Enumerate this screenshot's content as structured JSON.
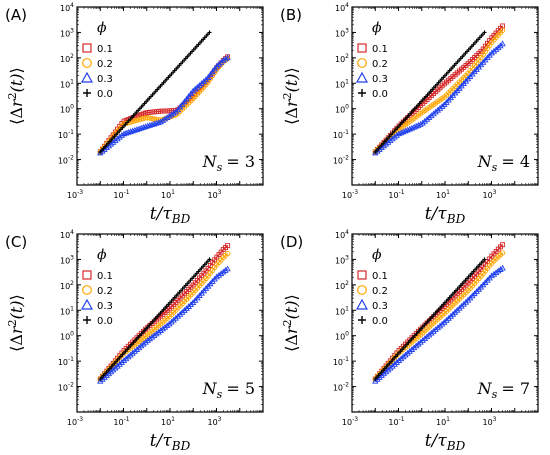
{
  "panel_ids": [
    "A",
    "B",
    "C",
    "D"
  ],
  "chart_data": [
    {
      "type": "scatter",
      "panel_label": "(A)",
      "annotation": {
        "text": "N",
        "subscript": "s",
        "value": "= 3"
      },
      "xlabel": {
        "main": "t/τ",
        "sub": "BD"
      },
      "ylabel": {
        "open": "⟨Δ",
        "var": "r",
        "sup": "2",
        "args": "(t)",
        "close": "⟩"
      },
      "xscale": "log",
      "yscale": "log",
      "xlim": [
        0.001,
        100000
      ],
      "ylim": [
        0.001,
        10000
      ],
      "x_ticks": [
        {
          "base": "10",
          "exp": "-3",
          "value": 0.001
        },
        {
          "base": "10",
          "exp": "-1",
          "value": 0.1
        },
        {
          "base": "10",
          "exp": "1",
          "value": 10
        },
        {
          "base": "10",
          "exp": "3",
          "value": 1000
        }
      ],
      "y_ticks": [
        {
          "base": "10",
          "exp": "-2",
          "value": 0.01
        },
        {
          "base": "10",
          "exp": "-1",
          "value": 0.1
        },
        {
          "base": "10",
          "exp": "0",
          "value": 1
        },
        {
          "base": "10",
          "exp": "1",
          "value": 10
        },
        {
          "base": "10",
          "exp": "2",
          "value": 100
        },
        {
          "base": "10",
          "exp": "3",
          "value": 1000
        },
        {
          "base": "10",
          "exp": "4",
          "value": 10000
        }
      ],
      "legend": {
        "title": "ϕ",
        "position": "upper-left"
      },
      "series": [
        {
          "name": "0.1",
          "marker": "square",
          "color": "#d62728",
          "points": [
            [
              0.01,
              0.02
            ],
            [
              0.1,
              0.32
            ],
            [
              1,
              0.7
            ],
            [
              4,
              0.8
            ],
            [
              20,
              0.85
            ],
            [
              100,
              3
            ],
            [
              400,
              12
            ],
            [
              1000,
              40
            ],
            [
              2000,
              80
            ],
            [
              3000,
              110
            ]
          ]
        },
        {
          "name": "0.2",
          "marker": "circle",
          "color": "#ffa500",
          "points": [
            [
              0.01,
              0.02
            ],
            [
              0.1,
              0.25
            ],
            [
              1,
              0.45
            ],
            [
              4,
              0.35
            ],
            [
              20,
              0.6
            ],
            [
              100,
              2.5
            ],
            [
              400,
              10
            ],
            [
              1000,
              35
            ],
            [
              2000,
              70
            ],
            [
              3000,
              95
            ]
          ]
        },
        {
          "name": "0.3",
          "marker": "triangle",
          "color": "#1f3ff0",
          "points": [
            [
              0.01,
              0.018
            ],
            [
              0.1,
              0.1
            ],
            [
              1,
              0.2
            ],
            [
              4,
              0.3
            ],
            [
              20,
              0.8
            ],
            [
              100,
              5
            ],
            [
              400,
              15
            ],
            [
              1000,
              45
            ],
            [
              2000,
              80
            ],
            [
              3000,
              100
            ]
          ]
        },
        {
          "name": "0.0",
          "marker": "plus",
          "color": "#000000",
          "points": [
            [
              0.01,
              0.02
            ],
            [
              0.1,
              0.2
            ],
            [
              1,
              2
            ],
            [
              10,
              20
            ],
            [
              100,
              200
            ],
            [
              500,
              1000
            ]
          ]
        }
      ]
    },
    {
      "type": "scatter",
      "panel_label": "(B)",
      "annotation": {
        "text": "N",
        "subscript": "s",
        "value": "= 4"
      },
      "xlabel": {
        "main": "t/τ",
        "sub": "BD"
      },
      "ylabel": {
        "open": "⟨Δ",
        "var": "r",
        "sup": "2",
        "args": "(t)",
        "close": "⟩"
      },
      "xscale": "log",
      "yscale": "log",
      "xlim": [
        0.001,
        100000
      ],
      "ylim": [
        0.001,
        10000
      ],
      "x_ticks": [
        {
          "base": "10",
          "exp": "-3",
          "value": 0.001
        },
        {
          "base": "10",
          "exp": "-1",
          "value": 0.1
        },
        {
          "base": "10",
          "exp": "1",
          "value": 10
        },
        {
          "base": "10",
          "exp": "3",
          "value": 1000
        }
      ],
      "y_ticks": [
        {
          "base": "10",
          "exp": "-2",
          "value": 0.01
        },
        {
          "base": "10",
          "exp": "-1",
          "value": 0.1
        },
        {
          "base": "10",
          "exp": "0",
          "value": 1
        },
        {
          "base": "10",
          "exp": "1",
          "value": 10
        },
        {
          "base": "10",
          "exp": "2",
          "value": 100
        },
        {
          "base": "10",
          "exp": "3",
          "value": 1000
        },
        {
          "base": "10",
          "exp": "4",
          "value": 10000
        }
      ],
      "legend": {
        "title": "ϕ",
        "position": "upper-left"
      },
      "series": [
        {
          "name": "0.1",
          "marker": "square",
          "color": "#d62728",
          "points": [
            [
              0.01,
              0.02
            ],
            [
              0.1,
              0.2
            ],
            [
              1,
              1.5
            ],
            [
              10,
              10
            ],
            [
              100,
              60
            ],
            [
              400,
              200
            ],
            [
              1000,
              600
            ],
            [
              2000,
              1200
            ],
            [
              3000,
              1800
            ]
          ]
        },
        {
          "name": "0.2",
          "marker": "circle",
          "color": "#ffa500",
          "points": [
            [
              0.01,
              0.02
            ],
            [
              0.1,
              0.15
            ],
            [
              1,
              0.7
            ],
            [
              10,
              3
            ],
            [
              100,
              25
            ],
            [
              400,
              120
            ],
            [
              1000,
              400
            ],
            [
              2000,
              800
            ],
            [
              3000,
              1200
            ]
          ]
        },
        {
          "name": "0.3",
          "marker": "triangle",
          "color": "#1f3ff0",
          "points": [
            [
              0.01,
              0.018
            ],
            [
              0.1,
              0.1
            ],
            [
              1,
              0.25
            ],
            [
              10,
              1.5
            ],
            [
              100,
              15
            ],
            [
              400,
              60
            ],
            [
              1000,
              150
            ],
            [
              2000,
              250
            ],
            [
              3000,
              350
            ]
          ]
        },
        {
          "name": "0.0",
          "marker": "plus",
          "color": "#000000",
          "points": [
            [
              0.01,
              0.02
            ],
            [
              0.1,
              0.2
            ],
            [
              1,
              2
            ],
            [
              10,
              20
            ],
            [
              100,
              200
            ],
            [
              500,
              1000
            ]
          ]
        }
      ]
    },
    {
      "type": "scatter",
      "panel_label": "(C)",
      "annotation": {
        "text": "N",
        "subscript": "s",
        "value": "= 5"
      },
      "xlabel": {
        "main": "t/τ",
        "sub": "BD"
      },
      "ylabel": {
        "open": "⟨Δ",
        "var": "r",
        "sup": "2",
        "args": "(t)",
        "close": "⟩"
      },
      "xscale": "log",
      "yscale": "log",
      "xlim": [
        0.001,
        100000
      ],
      "ylim": [
        0.001,
        10000
      ],
      "x_ticks": [
        {
          "base": "10",
          "exp": "-3",
          "value": 0.001
        },
        {
          "base": "10",
          "exp": "-1",
          "value": 0.1
        },
        {
          "base": "10",
          "exp": "1",
          "value": 10
        },
        {
          "base": "10",
          "exp": "3",
          "value": 1000
        }
      ],
      "y_ticks": [
        {
          "base": "10",
          "exp": "-2",
          "value": 0.01
        },
        {
          "base": "10",
          "exp": "-1",
          "value": 0.1
        },
        {
          "base": "10",
          "exp": "0",
          "value": 1
        },
        {
          "base": "10",
          "exp": "1",
          "value": 10
        },
        {
          "base": "10",
          "exp": "2",
          "value": 100
        },
        {
          "base": "10",
          "exp": "3",
          "value": 1000
        },
        {
          "base": "10",
          "exp": "4",
          "value": 10000
        }
      ],
      "legend": {
        "title": "ϕ",
        "position": "upper-left"
      },
      "series": [
        {
          "name": "0.1",
          "marker": "square",
          "color": "#d62728",
          "points": [
            [
              0.01,
              0.02
            ],
            [
              0.1,
              0.25
            ],
            [
              1,
              2
            ],
            [
              10,
              12
            ],
            [
              100,
              100
            ],
            [
              400,
              400
            ],
            [
              1000,
              1200
            ],
            [
              2000,
              2500
            ],
            [
              3000,
              3500
            ]
          ]
        },
        {
          "name": "0.2",
          "marker": "circle",
          "color": "#ffa500",
          "points": [
            [
              0.01,
              0.02
            ],
            [
              0.1,
              0.2
            ],
            [
              1,
              1
            ],
            [
              10,
              6
            ],
            [
              100,
              50
            ],
            [
              400,
              200
            ],
            [
              1000,
              600
            ],
            [
              2000,
              1200
            ],
            [
              3000,
              1700
            ]
          ]
        },
        {
          "name": "0.3",
          "marker": "triangle",
          "color": "#1f3ff0",
          "points": [
            [
              0.01,
              0.016
            ],
            [
              0.1,
              0.1
            ],
            [
              1,
              0.6
            ],
            [
              10,
              3
            ],
            [
              100,
              20
            ],
            [
              400,
              80
            ],
            [
              1000,
              200
            ],
            [
              2000,
              320
            ],
            [
              3000,
              420
            ]
          ]
        },
        {
          "name": "0.0",
          "marker": "plus",
          "color": "#000000",
          "points": [
            [
              0.01,
              0.02
            ],
            [
              0.1,
              0.2
            ],
            [
              1,
              2
            ],
            [
              10,
              20
            ],
            [
              100,
              200
            ],
            [
              500,
              1000
            ]
          ]
        }
      ]
    },
    {
      "type": "scatter",
      "panel_label": "(D)",
      "annotation": {
        "text": "N",
        "subscript": "s",
        "value": "= 7"
      },
      "xlabel": {
        "main": "t/τ",
        "sub": "BD"
      },
      "ylabel": {
        "open": "⟨Δ",
        "var": "r",
        "sup": "2",
        "args": "(t)",
        "close": "⟩"
      },
      "xscale": "log",
      "yscale": "log",
      "xlim": [
        0.001,
        100000
      ],
      "ylim": [
        0.001,
        10000
      ],
      "x_ticks": [
        {
          "base": "10",
          "exp": "-3",
          "value": 0.001
        },
        {
          "base": "10",
          "exp": "-1",
          "value": 0.1
        },
        {
          "base": "10",
          "exp": "1",
          "value": 10
        },
        {
          "base": "10",
          "exp": "3",
          "value": 1000
        }
      ],
      "y_ticks": [
        {
          "base": "10",
          "exp": "-2",
          "value": 0.01
        },
        {
          "base": "10",
          "exp": "-1",
          "value": 0.1
        },
        {
          "base": "10",
          "exp": "0",
          "value": 1
        },
        {
          "base": "10",
          "exp": "1",
          "value": 10
        },
        {
          "base": "10",
          "exp": "2",
          "value": 100
        },
        {
          "base": "10",
          "exp": "3",
          "value": 1000
        },
        {
          "base": "10",
          "exp": "4",
          "value": 10000
        }
      ],
      "legend": {
        "title": "ϕ",
        "position": "upper-left"
      },
      "series": [
        {
          "name": "0.1",
          "marker": "square",
          "color": "#d62728",
          "points": [
            [
              0.01,
              0.02
            ],
            [
              0.1,
              0.25
            ],
            [
              1,
              2
            ],
            [
              10,
              15
            ],
            [
              100,
              120
            ],
            [
              400,
              450
            ],
            [
              1000,
              1300
            ],
            [
              2000,
              2600
            ],
            [
              3000,
              3800
            ]
          ]
        },
        {
          "name": "0.2",
          "marker": "circle",
          "color": "#ffa500",
          "points": [
            [
              0.01,
              0.02
            ],
            [
              0.1,
              0.2
            ],
            [
              1,
              1.2
            ],
            [
              10,
              8
            ],
            [
              100,
              60
            ],
            [
              400,
              250
            ],
            [
              1000,
              700
            ],
            [
              2000,
              1300
            ],
            [
              3000,
              1800
            ]
          ]
        },
        {
          "name": "0.3",
          "marker": "triangle",
          "color": "#1f3ff0",
          "points": [
            [
              0.01,
              0.016
            ],
            [
              0.1,
              0.1
            ],
            [
              1,
              0.6
            ],
            [
              10,
              3.5
            ],
            [
              100,
              25
            ],
            [
              400,
              90
            ],
            [
              1000,
              220
            ],
            [
              2000,
              350
            ],
            [
              3000,
              450
            ]
          ]
        },
        {
          "name": "0.0",
          "marker": "plus",
          "color": "#000000",
          "points": [
            [
              0.01,
              0.02
            ],
            [
              0.1,
              0.2
            ],
            [
              1,
              2
            ],
            [
              10,
              20
            ],
            [
              100,
              200
            ],
            [
              500,
              1000
            ]
          ]
        }
      ]
    }
  ]
}
